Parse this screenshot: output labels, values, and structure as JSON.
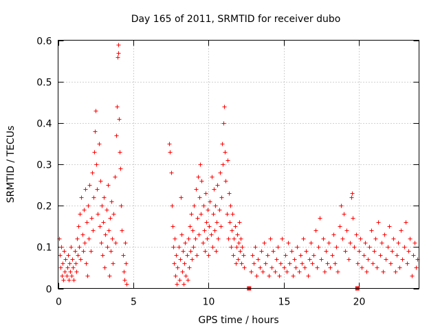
{
  "chart_data": {
    "type": "scatter",
    "title": "Day 165 of 2011, SRMTID for receiver dubo",
    "xlabel": "GPS time / hours",
    "ylabel": "SRMTID / TECUs",
    "xlim": [
      0,
      24
    ],
    "ylim": [
      0,
      0.6
    ],
    "grid": true,
    "legend": "none",
    "marker_color": "#ff0000",
    "x_ticks": [
      {
        "value": 0,
        "label": "0"
      },
      {
        "value": 5,
        "label": "5"
      },
      {
        "value": 10,
        "label": "10"
      },
      {
        "value": 15,
        "label": "15"
      },
      {
        "value": 20,
        "label": "20"
      }
    ],
    "y_ticks": [
      {
        "value": 0,
        "label": "0"
      },
      {
        "value": 0.1,
        "label": "0.1"
      },
      {
        "value": 0.2,
        "label": "0.2"
      },
      {
        "value": 0.3,
        "label": "0.3"
      },
      {
        "value": 0.4,
        "label": "0.4"
      },
      {
        "value": 0.5,
        "label": "0.5"
      },
      {
        "value": 0.6,
        "label": "0.6"
      }
    ],
    "square_markers": [
      {
        "x": 12.7,
        "y": 0.0
      },
      {
        "x": 19.9,
        "y": 0.0
      }
    ],
    "series": [
      {
        "name": "SRMTID",
        "marker": "plus",
        "points": [
          [
            0.05,
            0.12
          ],
          [
            0.1,
            0.08
          ],
          [
            0.15,
            0.05
          ],
          [
            0.2,
            0.1
          ],
          [
            0.25,
            0.03
          ],
          [
            0.3,
            0.06
          ],
          [
            0.35,
            0.02
          ],
          [
            0.4,
            0.09
          ],
          [
            0.45,
            0.04
          ],
          [
            0.5,
            0.07
          ],
          [
            0.55,
            0.03
          ],
          [
            0.6,
            0.05
          ],
          [
            0.65,
            0.08
          ],
          [
            0.7,
            0.02
          ],
          [
            0.75,
            0.06
          ],
          [
            0.8,
            0.04
          ],
          [
            0.85,
            0.1
          ],
          [
            0.9,
            0.03
          ],
          [
            0.95,
            0.07
          ],
          [
            1.0,
            0.05
          ],
          [
            1.05,
            0.02
          ],
          [
            1.1,
            0.09
          ],
          [
            1.15,
            0.06
          ],
          [
            1.2,
            0.04
          ],
          [
            1.25,
            0.12
          ],
          [
            1.3,
            0.08
          ],
          [
            1.35,
            0.15
          ],
          [
            1.4,
            0.1
          ],
          [
            1.45,
            0.18
          ],
          [
            1.5,
            0.07
          ],
          [
            1.55,
            0.22
          ],
          [
            1.6,
            0.13
          ],
          [
            1.65,
            0.09
          ],
          [
            1.7,
            0.19
          ],
          [
            1.75,
            0.11
          ],
          [
            1.8,
            0.24
          ],
          [
            1.85,
            0.06
          ],
          [
            1.9,
            0.16
          ],
          [
            1.95,
            0.03
          ],
          [
            2.0,
            0.2
          ],
          [
            2.05,
            0.12
          ],
          [
            2.1,
            0.25
          ],
          [
            2.15,
            0.09
          ],
          [
            2.2,
            0.17
          ],
          [
            2.25,
            0.28
          ],
          [
            2.3,
            0.14
          ],
          [
            2.35,
            0.22
          ],
          [
            2.4,
            0.33
          ],
          [
            2.45,
            0.38
          ],
          [
            2.5,
            0.43
          ],
          [
            2.55,
            0.3
          ],
          [
            2.6,
            0.24
          ],
          [
            2.65,
            0.18
          ],
          [
            2.7,
            0.35
          ],
          [
            2.75,
            0.15
          ],
          [
            2.8,
            0.26
          ],
          [
            2.85,
            0.11
          ],
          [
            2.9,
            0.2
          ],
          [
            2.95,
            0.08
          ],
          [
            3.0,
            0.16
          ],
          [
            3.05,
            0.22
          ],
          [
            3.1,
            0.05
          ],
          [
            3.15,
            0.13
          ],
          [
            3.2,
            0.19
          ],
          [
            3.25,
            0.1
          ],
          [
            3.3,
            0.25
          ],
          [
            3.35,
            0.14
          ],
          [
            3.4,
            0.03
          ],
          [
            3.45,
            0.17
          ],
          [
            3.5,
            0.09
          ],
          [
            3.55,
            0.21
          ],
          [
            3.6,
            0.12
          ],
          [
            3.65,
            0.06
          ],
          [
            3.7,
            0.18
          ],
          [
            3.75,
            0.27
          ],
          [
            3.8,
            0.11
          ],
          [
            3.85,
            0.37
          ],
          [
            3.9,
            0.44
          ],
          [
            3.95,
            0.56
          ],
          [
            4.0,
            0.59
          ],
          [
            4.02,
            0.57
          ],
          [
            4.05,
            0.41
          ],
          [
            4.1,
            0.33
          ],
          [
            4.15,
            0.29
          ],
          [
            4.2,
            0.2
          ],
          [
            4.25,
            0.14
          ],
          [
            4.3,
            0.08
          ],
          [
            4.35,
            0.04
          ],
          [
            4.4,
            0.02
          ],
          [
            4.45,
            0.11
          ],
          [
            4.5,
            0.06
          ],
          [
            4.55,
            0.01
          ],
          [
            7.4,
            0.35
          ],
          [
            7.45,
            0.33
          ],
          [
            7.5,
            0.28
          ],
          [
            7.55,
            0.2
          ],
          [
            7.6,
            0.15
          ],
          [
            7.65,
            0.1
          ],
          [
            7.7,
            0.06
          ],
          [
            7.75,
            0.12
          ],
          [
            7.8,
            0.03
          ],
          [
            7.85,
            0.08
          ],
          [
            7.9,
            0.01
          ],
          [
            7.95,
            0.05
          ],
          [
            8.0,
            0.1
          ],
          [
            8.05,
            0.02
          ],
          [
            8.1,
            0.07
          ],
          [
            8.15,
            0.22
          ],
          [
            8.2,
            0.13
          ],
          [
            8.25,
            0.04
          ],
          [
            8.3,
            0.09
          ],
          [
            8.35,
            0.01
          ],
          [
            8.4,
            0.06
          ],
          [
            8.45,
            0.11
          ],
          [
            8.5,
            0.03
          ],
          [
            8.55,
            0.08
          ],
          [
            8.6,
            0.02
          ],
          [
            8.65,
            0.12
          ],
          [
            8.7,
            0.05
          ],
          [
            8.75,
            0.15
          ],
          [
            8.8,
            0.09
          ],
          [
            8.85,
            0.18
          ],
          [
            8.9,
            0.07
          ],
          [
            8.95,
            0.14
          ],
          [
            9.0,
            0.1
          ],
          [
            9.05,
            0.2
          ],
          [
            9.1,
            0.12
          ],
          [
            9.15,
            0.24
          ],
          [
            9.2,
            0.08
          ],
          [
            9.25,
            0.17
          ],
          [
            9.3,
            0.27
          ],
          [
            9.35,
            0.13
          ],
          [
            9.4,
            0.22
          ],
          [
            9.45,
            0.3
          ],
          [
            9.5,
            0.18
          ],
          [
            9.55,
            0.26
          ],
          [
            9.6,
            0.11
          ],
          [
            9.65,
            0.2
          ],
          [
            9.7,
            0.14
          ],
          [
            9.75,
            0.09
          ],
          [
            9.8,
            0.23
          ],
          [
            9.85,
            0.16
          ],
          [
            9.9,
            0.12
          ],
          [
            9.95,
            0.19
          ],
          [
            10.0,
            0.08
          ],
          [
            10.05,
            0.15
          ],
          [
            10.1,
            0.21
          ],
          [
            10.15,
            0.13
          ],
          [
            10.2,
            0.27
          ],
          [
            10.25,
            0.1
          ],
          [
            10.3,
            0.18
          ],
          [
            10.35,
            0.24
          ],
          [
            10.4,
            0.14
          ],
          [
            10.45,
            0.2
          ],
          [
            10.5,
            0.09
          ],
          [
            10.55,
            0.16
          ],
          [
            10.6,
            0.25
          ],
          [
            10.65,
            0.12
          ],
          [
            10.7,
            0.19
          ],
          [
            10.75,
            0.28
          ],
          [
            10.8,
            0.15
          ],
          [
            10.85,
            0.22
          ],
          [
            10.9,
            0.35
          ],
          [
            10.95,
            0.3
          ],
          [
            11.0,
            0.4
          ],
          [
            11.05,
            0.44
          ],
          [
            11.1,
            0.33
          ],
          [
            11.15,
            0.26
          ],
          [
            11.2,
            0.18
          ],
          [
            11.25,
            0.31
          ],
          [
            11.3,
            0.12
          ],
          [
            11.35,
            0.23
          ],
          [
            11.4,
            0.16
          ],
          [
            11.45,
            0.2
          ],
          [
            11.5,
            0.1
          ],
          [
            11.55,
            0.14
          ],
          [
            11.6,
            0.18
          ],
          [
            11.65,
            0.08
          ],
          [
            11.7,
            0.12
          ],
          [
            11.75,
            0.15
          ],
          [
            11.8,
            0.06
          ],
          [
            11.85,
            0.1
          ],
          [
            11.9,
            0.13
          ],
          [
            11.95,
            0.07
          ],
          [
            12.0,
            0.11
          ],
          [
            12.05,
            0.16
          ],
          [
            12.1,
            0.09
          ],
          [
            12.15,
            0.12
          ],
          [
            12.2,
            0.06
          ],
          [
            12.25,
            0.1
          ],
          [
            12.3,
            0.08
          ],
          [
            12.35,
            0.05
          ],
          [
            12.8,
            0.04
          ],
          [
            12.9,
            0.08
          ],
          [
            13.0,
            0.06
          ],
          [
            13.1,
            0.1
          ],
          [
            13.2,
            0.03
          ],
          [
            13.3,
            0.07
          ],
          [
            13.4,
            0.05
          ],
          [
            13.5,
            0.09
          ],
          [
            13.6,
            0.04
          ],
          [
            13.7,
            0.11
          ],
          [
            13.8,
            0.06
          ],
          [
            13.9,
            0.08
          ],
          [
            14.0,
            0.03
          ],
          [
            14.1,
            0.12
          ],
          [
            14.2,
            0.05
          ],
          [
            14.3,
            0.09
          ],
          [
            14.4,
            0.04
          ],
          [
            14.5,
            0.07
          ],
          [
            14.6,
            0.1
          ],
          [
            14.7,
            0.03
          ],
          [
            14.8,
            0.06
          ],
          [
            14.9,
            0.12
          ],
          [
            15.0,
            0.05
          ],
          [
            15.1,
            0.08
          ],
          [
            15.2,
            0.04
          ],
          [
            15.3,
            0.11
          ],
          [
            15.4,
            0.06
          ],
          [
            15.5,
            0.09
          ],
          [
            15.6,
            0.03
          ],
          [
            15.7,
            0.07
          ],
          [
            15.8,
            0.05
          ],
          [
            15.9,
            0.1
          ],
          [
            16.0,
            0.04
          ],
          [
            16.1,
            0.08
          ],
          [
            16.2,
            0.06
          ],
          [
            16.3,
            0.12
          ],
          [
            16.4,
            0.05
          ],
          [
            16.5,
            0.09
          ],
          [
            16.6,
            0.03
          ],
          [
            16.7,
            0.07
          ],
          [
            16.8,
            0.11
          ],
          [
            16.9,
            0.06
          ],
          [
            17.0,
            0.08
          ],
          [
            17.1,
            0.14
          ],
          [
            17.2,
            0.05
          ],
          [
            17.3,
            0.1
          ],
          [
            17.4,
            0.17
          ],
          [
            17.5,
            0.07
          ],
          [
            17.6,
            0.12
          ],
          [
            17.7,
            0.04
          ],
          [
            17.8,
            0.09
          ],
          [
            17.9,
            0.06
          ],
          [
            18.0,
            0.11
          ],
          [
            18.1,
            0.05
          ],
          [
            18.2,
            0.08
          ],
          [
            18.3,
            0.13
          ],
          [
            18.4,
            0.06
          ],
          [
            18.5,
            0.1
          ],
          [
            18.6,
            0.04
          ],
          [
            18.7,
            0.15
          ],
          [
            18.8,
            0.2
          ],
          [
            18.9,
            0.12
          ],
          [
            19.0,
            0.18
          ],
          [
            19.1,
            0.09
          ],
          [
            19.2,
            0.14
          ],
          [
            19.3,
            0.07
          ],
          [
            19.4,
            0.11
          ],
          [
            19.5,
            0.22
          ],
          [
            19.55,
            0.23
          ],
          [
            19.6,
            0.17
          ],
          [
            19.7,
            0.1
          ],
          [
            19.8,
            0.13
          ],
          [
            19.9,
            0.06
          ],
          [
            20.0,
            0.09
          ],
          [
            20.1,
            0.12
          ],
          [
            20.2,
            0.05
          ],
          [
            20.3,
            0.08
          ],
          [
            20.4,
            0.11
          ],
          [
            20.5,
            0.04
          ],
          [
            20.6,
            0.07
          ],
          [
            20.7,
            0.1
          ],
          [
            20.8,
            0.14
          ],
          [
            20.9,
            0.06
          ],
          [
            21.0,
            0.09
          ],
          [
            21.1,
            0.12
          ],
          [
            21.2,
            0.05
          ],
          [
            21.3,
            0.16
          ],
          [
            21.4,
            0.08
          ],
          [
            21.5,
            0.11
          ],
          [
            21.6,
            0.04
          ],
          [
            21.7,
            0.13
          ],
          [
            21.8,
            0.07
          ],
          [
            21.9,
            0.1
          ],
          [
            22.0,
            0.15
          ],
          [
            22.1,
            0.06
          ],
          [
            22.2,
            0.09
          ],
          [
            22.3,
            0.12
          ],
          [
            22.4,
            0.04
          ],
          [
            22.5,
            0.08
          ],
          [
            22.6,
            0.11
          ],
          [
            22.7,
            0.05
          ],
          [
            22.8,
            0.14
          ],
          [
            22.9,
            0.07
          ],
          [
            23.0,
            0.1
          ],
          [
            23.1,
            0.16
          ],
          [
            23.2,
            0.06
          ],
          [
            23.3,
            0.09
          ],
          [
            23.4,
            0.12
          ],
          [
            23.5,
            0.03
          ],
          [
            23.6,
            0.08
          ],
          [
            23.7,
            0.11
          ],
          [
            23.8,
            0.05
          ],
          [
            23.9,
            0.07
          ]
        ]
      }
    ]
  }
}
